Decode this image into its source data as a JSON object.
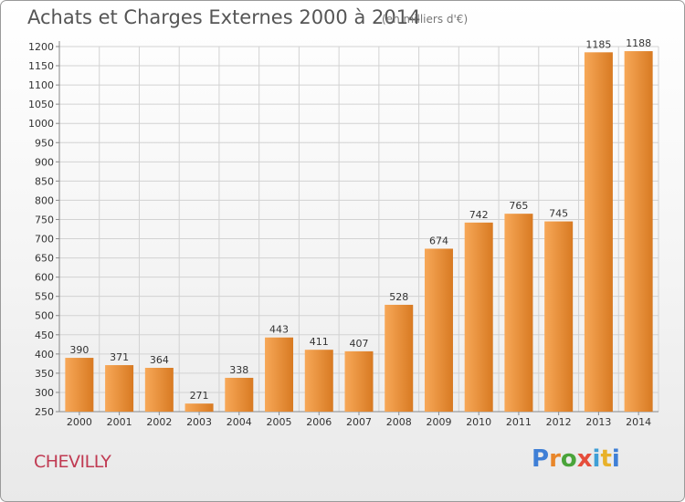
{
  "header": {
    "title": "Achats et Charges Externes 2000 à 2014",
    "subtitle": "(en milliers d'€)"
  },
  "footer": {
    "city": "CHEVILLY",
    "brand_letters": [
      "P",
      "r",
      "o",
      "x",
      "i",
      "t",
      "i"
    ]
  },
  "colors": {
    "bar_light": "#f7a858",
    "bar_dark": "#d87a22",
    "grid": "#d2d2d2",
    "axis": "#888888"
  },
  "chart_data": {
    "type": "bar",
    "title": "Achats et Charges Externes 2000 à 2014",
    "subtitle": "(en milliers d'€)",
    "xlabel": "",
    "ylabel": "",
    "categories": [
      "2000",
      "2001",
      "2002",
      "2003",
      "2004",
      "2005",
      "2006",
      "2007",
      "2008",
      "2009",
      "2010",
      "2011",
      "2012",
      "2013",
      "2014"
    ],
    "values": [
      390,
      371,
      364,
      271,
      338,
      443,
      411,
      407,
      528,
      674,
      742,
      765,
      745,
      1185,
      1188
    ],
    "ylim": [
      250,
      1200
    ],
    "yticks": [
      250,
      300,
      350,
      400,
      450,
      500,
      550,
      600,
      650,
      700,
      750,
      800,
      850,
      900,
      950,
      1000,
      1050,
      1100,
      1150,
      1200
    ],
    "grid": true,
    "legend": "none"
  }
}
